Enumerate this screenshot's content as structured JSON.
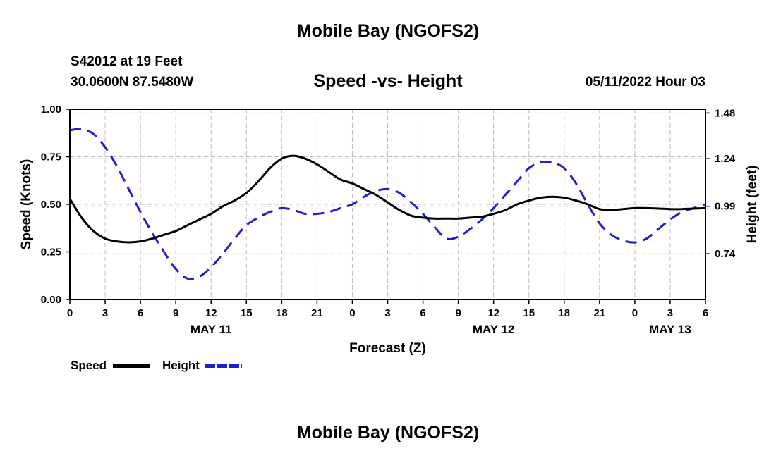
{
  "header": {
    "title": "Mobile Bay (NGOFS2)",
    "station": "S42012 at 19 Feet",
    "coordinates": "30.0600N  87.5480W",
    "subtitle": "Speed -vs- Height",
    "datetime": "05/11/2022 Hour 03"
  },
  "footer": {
    "title": "Mobile Bay (NGOFS2)"
  },
  "chart_data": {
    "type": "line",
    "xlabel": "Forecast (Z)",
    "ylabel_left": "Speed (Knots)",
    "ylabel_right": "Height (feet)",
    "x_range": [
      0,
      54
    ],
    "x_ticks": [
      0,
      3,
      6,
      9,
      12,
      15,
      18,
      21,
      24,
      27,
      30,
      33,
      36,
      39,
      42,
      45,
      48,
      51,
      54
    ],
    "x_tick_labels": [
      "0",
      "3",
      "6",
      "9",
      "12",
      "15",
      "18",
      "21",
      "0",
      "3",
      "6",
      "9",
      "12",
      "15",
      "18",
      "21",
      "0",
      "3",
      "6"
    ],
    "date_labels": [
      {
        "x": 12,
        "label": "MAY 11"
      },
      {
        "x": 36,
        "label": "MAY 12"
      },
      {
        "x": 51,
        "label": "MAY 13"
      }
    ],
    "ylim_left": [
      0,
      1.0
    ],
    "y_ticks_left": [
      0.0,
      0.25,
      0.5,
      0.75,
      1.0
    ],
    "y_tick_labels_left": [
      "0.00",
      "0.25",
      "0.50",
      "0.75",
      "1.00"
    ],
    "ylim_right": [
      0.5,
      1.5
    ],
    "y_ticks_right": [
      0.74,
      0.99,
      1.24,
      1.48
    ],
    "y_tick_labels_right": [
      "0.74",
      "0.99",
      "1.24",
      "1.48"
    ],
    "grid": true,
    "series": [
      {
        "name": "Speed",
        "axis": "left",
        "color": "#000000",
        "style": "solid",
        "x": [
          0,
          1,
          2,
          3,
          4,
          5,
          6,
          7,
          8,
          9,
          10,
          11,
          12,
          13,
          14,
          15,
          16,
          17,
          18,
          19,
          20,
          21,
          22,
          23,
          24,
          25,
          26,
          27,
          28,
          29,
          30,
          31,
          32,
          33,
          34,
          35,
          36,
          37,
          38,
          39,
          40,
          41,
          42,
          43,
          44,
          45,
          46,
          47,
          48,
          49,
          50,
          51,
          52,
          53,
          54
        ],
        "values": [
          0.53,
          0.43,
          0.36,
          0.32,
          0.305,
          0.3,
          0.305,
          0.32,
          0.34,
          0.36,
          0.39,
          0.42,
          0.45,
          0.49,
          0.52,
          0.56,
          0.62,
          0.69,
          0.74,
          0.755,
          0.74,
          0.71,
          0.67,
          0.63,
          0.61,
          0.58,
          0.55,
          0.51,
          0.47,
          0.44,
          0.43,
          0.425,
          0.425,
          0.425,
          0.43,
          0.435,
          0.45,
          0.47,
          0.5,
          0.52,
          0.535,
          0.54,
          0.535,
          0.52,
          0.5,
          0.475,
          0.47,
          0.475,
          0.48,
          0.48,
          0.478,
          0.475,
          0.475,
          0.478,
          0.48
        ]
      },
      {
        "name": "Height",
        "axis": "right",
        "color": "#1f1fcc",
        "style": "dashed",
        "x": [
          0,
          1,
          2,
          3,
          4,
          5,
          6,
          7,
          8,
          9,
          10,
          11,
          12,
          13,
          14,
          15,
          16,
          17,
          18,
          19,
          20,
          21,
          22,
          23,
          24,
          25,
          26,
          27,
          28,
          29,
          30,
          31,
          32,
          33,
          34,
          35,
          36,
          37,
          38,
          39,
          40,
          41,
          42,
          43,
          44,
          45,
          46,
          47,
          48,
          49,
          50,
          51,
          52,
          53,
          54
        ],
        "values": [
          1.39,
          1.395,
          1.37,
          1.3,
          1.2,
          1.08,
          0.96,
          0.85,
          0.75,
          0.66,
          0.61,
          0.62,
          0.67,
          0.74,
          0.82,
          0.89,
          0.93,
          0.96,
          0.98,
          0.97,
          0.95,
          0.95,
          0.96,
          0.98,
          1.0,
          1.04,
          1.07,
          1.08,
          1.06,
          1.01,
          0.95,
          0.88,
          0.82,
          0.83,
          0.87,
          0.92,
          0.98,
          1.05,
          1.12,
          1.19,
          1.22,
          1.22,
          1.19,
          1.11,
          1.0,
          0.9,
          0.84,
          0.81,
          0.8,
          0.82,
          0.87,
          0.92,
          0.96,
          0.98,
          1.0
        ]
      }
    ],
    "legend": {
      "position": "bottom-left",
      "items": [
        {
          "label": "Speed",
          "color": "#000000",
          "style": "solid"
        },
        {
          "label": "Height",
          "color": "#1f1fcc",
          "style": "dashed"
        }
      ]
    }
  }
}
